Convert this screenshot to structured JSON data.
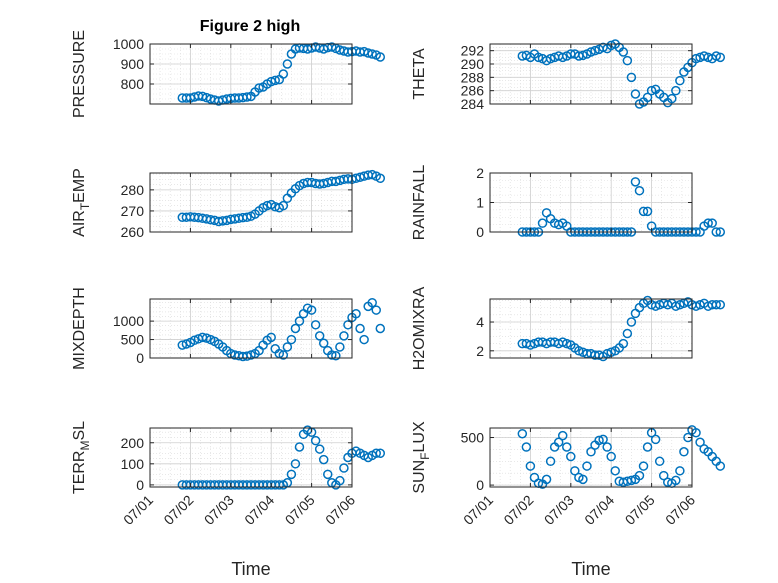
{
  "figure": {
    "title": "Figure 2 high"
  },
  "chart_data": [
    {
      "type": "scatter",
      "ylabel": "PRESSURE",
      "xlabel": "",
      "ylim": [
        700,
        1000
      ],
      "yticks": [
        800,
        900,
        1000
      ],
      "x": [
        0.8,
        0.9,
        1.0,
        1.1,
        1.2,
        1.3,
        1.4,
        1.5,
        1.6,
        1.7,
        1.8,
        1.9,
        2.0,
        2.1,
        2.2,
        2.3,
        2.4,
        2.5,
        2.6,
        2.7,
        2.8,
        2.9,
        3.0,
        3.1,
        3.2,
        3.3,
        3.4,
        3.5,
        3.6,
        3.7,
        3.8,
        3.9,
        4.0,
        4.1,
        4.2,
        4.3,
        4.4,
        4.5,
        4.6,
        4.7,
        4.8,
        4.9,
        5.0,
        5.1,
        5.2,
        5.3,
        5.4,
        5.5,
        5.6,
        5.7
      ],
      "y": [
        730,
        730,
        730,
        735,
        740,
        738,
        732,
        725,
        720,
        715,
        720,
        725,
        728,
        730,
        730,
        732,
        735,
        738,
        760,
        780,
        785,
        800,
        812,
        818,
        822,
        850,
        900,
        950,
        975,
        980,
        978,
        975,
        980,
        985,
        980,
        975,
        982,
        985,
        978,
        970,
        965,
        960,
        962,
        965,
        960,
        962,
        955,
        950,
        945,
        935
      ]
    },
    {
      "type": "scatter",
      "ylabel": "THETA",
      "xlabel": "",
      "ylim": [
        284,
        293
      ],
      "yticks": [
        284,
        286,
        288,
        290,
        292
      ],
      "x": [
        0.8,
        0.9,
        1.0,
        1.1,
        1.2,
        1.3,
        1.4,
        1.5,
        1.6,
        1.7,
        1.8,
        1.9,
        2.0,
        2.1,
        2.2,
        2.3,
        2.4,
        2.5,
        2.6,
        2.7,
        2.8,
        2.9,
        3.0,
        3.1,
        3.2,
        3.3,
        3.4,
        3.5,
        3.6,
        3.7,
        3.8,
        3.9,
        4.0,
        4.1,
        4.2,
        4.3,
        4.4,
        4.5,
        4.6,
        4.7,
        4.8,
        4.9,
        5.0,
        5.1,
        5.2,
        5.3,
        5.4,
        5.5,
        5.6,
        5.7
      ],
      "y": [
        291.2,
        291.3,
        291.0,
        291.5,
        291.0,
        290.8,
        290.5,
        290.8,
        291.0,
        291.2,
        291.0,
        291.2,
        291.5,
        291.5,
        291.2,
        291.3,
        291.5,
        291.8,
        292.0,
        292.2,
        292.5,
        292.3,
        292.8,
        293.0,
        292.5,
        291.8,
        290.5,
        288.0,
        285.5,
        284.0,
        284.3,
        285.0,
        286.0,
        286.2,
        285.5,
        285.0,
        284.2,
        284.8,
        286.0,
        287.5,
        288.8,
        289.5,
        290.2,
        290.8,
        291.0,
        291.2,
        291.0,
        290.8,
        291.2,
        291.0
      ]
    },
    {
      "type": "scatter",
      "ylabel": "AIR_TEMP",
      "xlabel": "",
      "ylim": [
        260,
        288
      ],
      "yticks": [
        260,
        270,
        280
      ],
      "x": [
        0.8,
        0.9,
        1.0,
        1.1,
        1.2,
        1.3,
        1.4,
        1.5,
        1.6,
        1.7,
        1.8,
        1.9,
        2.0,
        2.1,
        2.2,
        2.3,
        2.4,
        2.5,
        2.6,
        2.7,
        2.8,
        2.9,
        3.0,
        3.1,
        3.2,
        3.3,
        3.4,
        3.5,
        3.6,
        3.7,
        3.8,
        3.9,
        4.0,
        4.1,
        4.2,
        4.3,
        4.4,
        4.5,
        4.6,
        4.7,
        4.8,
        4.9,
        5.0,
        5.1,
        5.2,
        5.3,
        5.4,
        5.5,
        5.6,
        5.7
      ],
      "y": [
        267,
        267,
        267.2,
        267,
        266.8,
        266.5,
        266.2,
        265.8,
        265.5,
        265,
        265.3,
        265.5,
        266,
        266.2,
        266.5,
        266.8,
        267,
        267.5,
        268.5,
        270,
        271.5,
        272.5,
        273,
        272,
        271.5,
        272.5,
        276,
        278.5,
        280.5,
        282,
        283,
        283.5,
        283.5,
        283,
        282.8,
        283,
        283.5,
        284,
        284,
        284.5,
        285,
        285.2,
        285,
        285.5,
        286,
        286.5,
        287,
        287.2,
        286.5,
        285.5
      ]
    },
    {
      "type": "scatter",
      "ylabel": "RAINFALL",
      "xlabel": "",
      "ylim": [
        0,
        2
      ],
      "yticks": [
        0,
        1,
        2
      ],
      "x": [
        0.8,
        0.9,
        1.0,
        1.1,
        1.2,
        1.3,
        1.4,
        1.5,
        1.6,
        1.7,
        1.8,
        1.9,
        2.0,
        2.1,
        2.2,
        2.3,
        2.4,
        2.5,
        2.6,
        2.7,
        2.8,
        2.9,
        3.0,
        3.1,
        3.2,
        3.3,
        3.4,
        3.5,
        3.6,
        3.7,
        3.8,
        3.9,
        4.0,
        4.1,
        4.2,
        4.3,
        4.4,
        4.5,
        4.6,
        4.7,
        4.8,
        4.9,
        5.0,
        5.1,
        5.2,
        5.3,
        5.4,
        5.5,
        5.6,
        5.7
      ],
      "y": [
        0,
        0,
        0,
        0,
        0,
        0.3,
        0.65,
        0.45,
        0.3,
        0.25,
        0.3,
        0.2,
        0,
        0,
        0,
        0,
        0,
        0,
        0,
        0,
        0,
        0,
        0,
        0,
        0,
        0,
        0,
        0,
        1.7,
        1.4,
        0.7,
        0.7,
        0.2,
        0,
        0,
        0,
        0,
        0,
        0,
        0,
        0,
        0,
        0,
        0,
        0,
        0.2,
        0.3,
        0.3,
        0,
        0
      ]
    },
    {
      "type": "scatter",
      "ylabel": "MIXDEPTH",
      "xlabel": "",
      "ylim": [
        0,
        1600
      ],
      "yticks": [
        0,
        500,
        1000
      ],
      "x": [
        0.8,
        0.9,
        1.0,
        1.1,
        1.2,
        1.3,
        1.4,
        1.5,
        1.6,
        1.7,
        1.8,
        1.9,
        2.0,
        2.1,
        2.2,
        2.3,
        2.4,
        2.5,
        2.6,
        2.7,
        2.8,
        2.9,
        3.0,
        3.1,
        3.2,
        3.3,
        3.4,
        3.5,
        3.6,
        3.7,
        3.8,
        3.9,
        4.0,
        4.1,
        4.2,
        4.3,
        4.4,
        4.5,
        4.6,
        4.7,
        4.8,
        4.9,
        5.0,
        5.1,
        5.2,
        5.3,
        5.4,
        5.5,
        5.6,
        5.7
      ],
      "y": [
        350,
        380,
        420,
        480,
        520,
        560,
        540,
        500,
        450,
        380,
        300,
        200,
        120,
        80,
        60,
        40,
        50,
        80,
        120,
        200,
        350,
        480,
        560,
        250,
        120,
        80,
        300,
        500,
        800,
        1000,
        1200,
        1350,
        1300,
        900,
        600,
        400,
        200,
        80,
        60,
        300,
        600,
        900,
        1100,
        1200,
        800,
        500,
        1400,
        1500,
        1300,
        800
      ]
    },
    {
      "type": "scatter",
      "ylabel": "H2OMIXRA",
      "xlabel": "",
      "ylim": [
        1.5,
        5.6
      ],
      "yticks": [
        2,
        4
      ],
      "x": [
        0.8,
        0.9,
        1.0,
        1.1,
        1.2,
        1.3,
        1.4,
        1.5,
        1.6,
        1.7,
        1.8,
        1.9,
        2.0,
        2.1,
        2.2,
        2.3,
        2.4,
        2.5,
        2.6,
        2.7,
        2.8,
        2.9,
        3.0,
        3.1,
        3.2,
        3.3,
        3.4,
        3.5,
        3.6,
        3.7,
        3.8,
        3.9,
        4.0,
        4.1,
        4.2,
        4.3,
        4.4,
        4.5,
        4.6,
        4.7,
        4.8,
        4.9,
        5.0,
        5.1,
        5.2,
        5.3,
        5.4,
        5.5,
        5.6,
        5.7
      ],
      "y": [
        2.5,
        2.5,
        2.4,
        2.5,
        2.6,
        2.6,
        2.5,
        2.6,
        2.6,
        2.5,
        2.6,
        2.5,
        2.4,
        2.2,
        2.0,
        1.9,
        1.8,
        1.8,
        1.7,
        1.7,
        1.6,
        1.8,
        1.9,
        2.0,
        2.2,
        2.5,
        3.2,
        4.0,
        4.6,
        5.0,
        5.3,
        5.5,
        5.2,
        5.1,
        5.2,
        5.3,
        5.2,
        5.3,
        5.1,
        5.2,
        5.3,
        5.4,
        5.2,
        5.1,
        5.2,
        5.3,
        5.1,
        5.2,
        5.2,
        5.2
      ]
    },
    {
      "type": "scatter",
      "ylabel": "TERR_MSL",
      "xlabel": "Time",
      "ylim": [
        -10,
        270
      ],
      "yticks": [
        0,
        100,
        200
      ],
      "xticks": [
        "07/01",
        "07/02",
        "07/03",
        "07/04",
        "07/05",
        "07/06"
      ],
      "x": [
        0.8,
        0.9,
        1.0,
        1.1,
        1.2,
        1.3,
        1.4,
        1.5,
        1.6,
        1.7,
        1.8,
        1.9,
        2.0,
        2.1,
        2.2,
        2.3,
        2.4,
        2.5,
        2.6,
        2.7,
        2.8,
        2.9,
        3.0,
        3.1,
        3.2,
        3.3,
        3.4,
        3.5,
        3.6,
        3.7,
        3.8,
        3.9,
        4.0,
        4.1,
        4.2,
        4.3,
        4.4,
        4.5,
        4.6,
        4.7,
        4.8,
        4.9,
        5.0,
        5.1,
        5.2,
        5.3,
        5.4,
        5.5,
        5.6,
        5.7
      ],
      "y": [
        0,
        0,
        0,
        0,
        0,
        0,
        0,
        0,
        0,
        0,
        0,
        0,
        0,
        0,
        0,
        0,
        0,
        0,
        0,
        0,
        0,
        0,
        0,
        0,
        0,
        0,
        10,
        50,
        100,
        180,
        240,
        260,
        250,
        210,
        170,
        120,
        50,
        10,
        0,
        20,
        80,
        130,
        150,
        160,
        150,
        140,
        130,
        140,
        150,
        150
      ]
    },
    {
      "type": "scatter",
      "ylabel": "SUN_FLUX",
      "xlabel": "Time",
      "ylim": [
        -20,
        600
      ],
      "yticks": [
        0,
        500
      ],
      "xticks": [
        "07/01",
        "07/02",
        "07/03",
        "07/04",
        "07/05",
        "07/06"
      ],
      "x": [
        0.8,
        0.9,
        1.0,
        1.1,
        1.2,
        1.3,
        1.4,
        1.5,
        1.6,
        1.7,
        1.8,
        1.9,
        2.0,
        2.1,
        2.2,
        2.3,
        2.4,
        2.5,
        2.6,
        2.7,
        2.8,
        2.9,
        3.0,
        3.1,
        3.2,
        3.3,
        3.4,
        3.5,
        3.6,
        3.7,
        3.8,
        3.9,
        4.0,
        4.1,
        4.2,
        4.3,
        4.4,
        4.5,
        4.6,
        4.7,
        4.8,
        4.9,
        5.0,
        5.1,
        5.2,
        5.3,
        5.4,
        5.5,
        5.6,
        5.7
      ],
      "y": [
        540,
        400,
        200,
        80,
        20,
        10,
        60,
        250,
        400,
        450,
        520,
        400,
        300,
        150,
        80,
        60,
        200,
        350,
        420,
        470,
        480,
        400,
        300,
        150,
        40,
        30,
        40,
        50,
        60,
        100,
        200,
        400,
        550,
        480,
        250,
        100,
        30,
        20,
        50,
        150,
        350,
        500,
        580,
        550,
        450,
        380,
        350,
        300,
        250,
        200
      ]
    }
  ]
}
